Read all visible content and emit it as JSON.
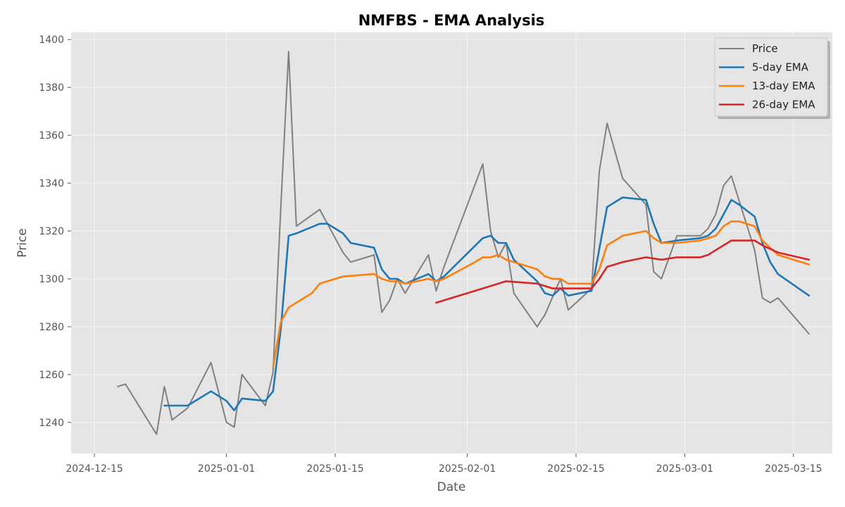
{
  "chart_data": {
    "type": "line",
    "title": "NMFBS - EMA Analysis",
    "xlabel": "Date",
    "ylabel": "Price",
    "x_ticks": [
      "2024-12-15",
      "2025-01-01",
      "2025-01-15",
      "2025-02-01",
      "2025-02-15",
      "2025-03-01",
      "2025-03-15"
    ],
    "y_ticks": [
      1240,
      1260,
      1280,
      1300,
      1320,
      1340,
      1360,
      1380,
      1400
    ],
    "xlim": [
      "2024-12-12",
      "2025-03-20"
    ],
    "ylim": [
      1227,
      1403
    ],
    "grid": true,
    "legend_position": "top-right",
    "colors": {
      "background": "#e5e5e5",
      "grid": "#f5f5f5",
      "price": "#808080",
      "ema5": "#1f77b4",
      "ema13": "#ff7f0e",
      "ema26": "#d62728"
    },
    "series": [
      {
        "name": "Price",
        "color": "#808080",
        "points": [
          [
            "2024-12-18",
            1255
          ],
          [
            "2024-12-19",
            1256
          ],
          [
            "2024-12-23",
            1235
          ],
          [
            "2024-12-24",
            1255
          ],
          [
            "2024-12-25",
            1241
          ],
          [
            "2024-12-27",
            1246
          ],
          [
            "2024-12-30",
            1265
          ],
          [
            "2025-01-01",
            1240
          ],
          [
            "2025-01-02",
            1238
          ],
          [
            "2025-01-03",
            1260
          ],
          [
            "2025-01-06",
            1247
          ],
          [
            "2025-01-07",
            1261
          ],
          [
            "2025-01-08",
            1330
          ],
          [
            "2025-01-09",
            1395
          ],
          [
            "2025-01-10",
            1322
          ],
          [
            "2025-01-13",
            1329
          ],
          [
            "2025-01-16",
            1311
          ],
          [
            "2025-01-17",
            1307
          ],
          [
            "2025-01-20",
            1310
          ],
          [
            "2025-01-21",
            1286
          ],
          [
            "2025-01-22",
            1291
          ],
          [
            "2025-01-23",
            1300
          ],
          [
            "2025-01-24",
            1294
          ],
          [
            "2025-01-27",
            1310
          ],
          [
            "2025-01-28",
            1295
          ],
          [
            "2025-01-29",
            1305
          ],
          [
            "2025-02-03",
            1348
          ],
          [
            "2025-02-04",
            1320
          ],
          [
            "2025-02-05",
            1309
          ],
          [
            "2025-02-06",
            1315
          ],
          [
            "2025-02-07",
            1294
          ],
          [
            "2025-02-10",
            1280
          ],
          [
            "2025-02-11",
            1285
          ],
          [
            "2025-02-13",
            1300
          ],
          [
            "2025-02-14",
            1287
          ],
          [
            "2025-02-17",
            1296
          ],
          [
            "2025-02-18",
            1345
          ],
          [
            "2025-02-19",
            1365
          ],
          [
            "2025-02-21",
            1342
          ],
          [
            "2025-02-24",
            1331
          ],
          [
            "2025-02-25",
            1303
          ],
          [
            "2025-02-26",
            1300
          ],
          [
            "2025-02-28",
            1318
          ],
          [
            "2025-03-03",
            1318
          ],
          [
            "2025-03-04",
            1321
          ],
          [
            "2025-03-05",
            1327
          ],
          [
            "2025-03-06",
            1339
          ],
          [
            "2025-03-07",
            1343
          ],
          [
            "2025-03-10",
            1312
          ],
          [
            "2025-03-11",
            1292
          ],
          [
            "2025-03-12",
            1290
          ],
          [
            "2025-03-13",
            1292
          ],
          [
            "2025-03-17",
            1277
          ]
        ]
      },
      {
        "name": "5-day EMA",
        "color": "#1f77b4",
        "points": [
          [
            "2024-12-24",
            1247
          ],
          [
            "2024-12-27",
            1247
          ],
          [
            "2024-12-30",
            1253
          ],
          [
            "2025-01-01",
            1249
          ],
          [
            "2025-01-02",
            1245
          ],
          [
            "2025-01-03",
            1250
          ],
          [
            "2025-01-06",
            1249
          ],
          [
            "2025-01-07",
            1253
          ],
          [
            "2025-01-08",
            1279
          ],
          [
            "2025-01-09",
            1318
          ],
          [
            "2025-01-10",
            1319
          ],
          [
            "2025-01-13",
            1323
          ],
          [
            "2025-01-14",
            1323
          ],
          [
            "2025-01-16",
            1319
          ],
          [
            "2025-01-17",
            1315
          ],
          [
            "2025-01-20",
            1313
          ],
          [
            "2025-01-21",
            1304
          ],
          [
            "2025-01-22",
            1300
          ],
          [
            "2025-01-23",
            1300
          ],
          [
            "2025-01-24",
            1298
          ],
          [
            "2025-01-27",
            1302
          ],
          [
            "2025-01-28",
            1299
          ],
          [
            "2025-01-29",
            1301
          ],
          [
            "2025-02-03",
            1317
          ],
          [
            "2025-02-04",
            1318
          ],
          [
            "2025-02-05",
            1315
          ],
          [
            "2025-02-06",
            1315
          ],
          [
            "2025-02-07",
            1308
          ],
          [
            "2025-02-10",
            1299
          ],
          [
            "2025-02-11",
            1294
          ],
          [
            "2025-02-12",
            1293
          ],
          [
            "2025-02-13",
            1296
          ],
          [
            "2025-02-14",
            1293
          ],
          [
            "2025-02-17",
            1295
          ],
          [
            "2025-02-19",
            1330
          ],
          [
            "2025-02-21",
            1334
          ],
          [
            "2025-02-24",
            1333
          ],
          [
            "2025-02-25",
            1323
          ],
          [
            "2025-02-26",
            1315
          ],
          [
            "2025-02-28",
            1316
          ],
          [
            "2025-03-03",
            1317
          ],
          [
            "2025-03-04",
            1318
          ],
          [
            "2025-03-05",
            1321
          ],
          [
            "2025-03-06",
            1327
          ],
          [
            "2025-03-07",
            1333
          ],
          [
            "2025-03-08",
            1331
          ],
          [
            "2025-03-10",
            1326
          ],
          [
            "2025-03-11",
            1315
          ],
          [
            "2025-03-12",
            1307
          ],
          [
            "2025-03-13",
            1302
          ],
          [
            "2025-03-17",
            1293
          ]
        ]
      },
      {
        "name": "13-day EMA",
        "color": "#ff7f0e",
        "points": [
          [
            "2025-01-07",
            1263
          ],
          [
            "2025-01-08",
            1282
          ],
          [
            "2025-01-09",
            1288
          ],
          [
            "2025-01-12",
            1294
          ],
          [
            "2025-01-13",
            1298
          ],
          [
            "2025-01-16",
            1301
          ],
          [
            "2025-01-20",
            1302
          ],
          [
            "2025-01-21",
            1300
          ],
          [
            "2025-01-22",
            1299
          ],
          [
            "2025-01-23",
            1299
          ],
          [
            "2025-01-24",
            1298
          ],
          [
            "2025-01-27",
            1300
          ],
          [
            "2025-01-28",
            1299
          ],
          [
            "2025-01-29",
            1300
          ],
          [
            "2025-02-02",
            1307
          ],
          [
            "2025-02-03",
            1309
          ],
          [
            "2025-02-04",
            1309
          ],
          [
            "2025-02-05",
            1310
          ],
          [
            "2025-02-06",
            1308
          ],
          [
            "2025-02-08",
            1306
          ],
          [
            "2025-02-10",
            1304
          ],
          [
            "2025-02-11",
            1301
          ],
          [
            "2025-02-12",
            1300
          ],
          [
            "2025-02-13",
            1300
          ],
          [
            "2025-02-14",
            1298
          ],
          [
            "2025-02-17",
            1298
          ],
          [
            "2025-02-18",
            1304
          ],
          [
            "2025-02-19",
            1314
          ],
          [
            "2025-02-21",
            1318
          ],
          [
            "2025-02-24",
            1320
          ],
          [
            "2025-02-25",
            1317
          ],
          [
            "2025-02-26",
            1315
          ],
          [
            "2025-02-28",
            1315
          ],
          [
            "2025-03-03",
            1316
          ],
          [
            "2025-03-04",
            1317
          ],
          [
            "2025-03-05",
            1318
          ],
          [
            "2025-03-06",
            1322
          ],
          [
            "2025-03-07",
            1324
          ],
          [
            "2025-03-08",
            1324
          ],
          [
            "2025-03-10",
            1322
          ],
          [
            "2025-03-11",
            1316
          ],
          [
            "2025-03-13",
            1310
          ],
          [
            "2025-03-17",
            1306
          ]
        ]
      },
      {
        "name": "26-day EMA",
        "color": "#d62728",
        "points": [
          [
            "2025-01-28",
            1290
          ],
          [
            "2025-01-29",
            1291
          ],
          [
            "2025-02-03",
            1296
          ],
          [
            "2025-02-04",
            1297
          ],
          [
            "2025-02-05",
            1298
          ],
          [
            "2025-02-06",
            1299
          ],
          [
            "2025-02-10",
            1298
          ],
          [
            "2025-02-12",
            1296
          ],
          [
            "2025-02-13",
            1296
          ],
          [
            "2025-02-14",
            1296
          ],
          [
            "2025-02-17",
            1296
          ],
          [
            "2025-02-18",
            1300
          ],
          [
            "2025-02-19",
            1305
          ],
          [
            "2025-02-21",
            1307
          ],
          [
            "2025-02-24",
            1309
          ],
          [
            "2025-02-26",
            1308
          ],
          [
            "2025-02-28",
            1309
          ],
          [
            "2025-03-03",
            1309
          ],
          [
            "2025-03-04",
            1310
          ],
          [
            "2025-03-05",
            1312
          ],
          [
            "2025-03-06",
            1314
          ],
          [
            "2025-03-07",
            1316
          ],
          [
            "2025-03-10",
            1316
          ],
          [
            "2025-03-11",
            1314
          ],
          [
            "2025-03-13",
            1311
          ],
          [
            "2025-03-17",
            1308
          ]
        ]
      }
    ]
  }
}
